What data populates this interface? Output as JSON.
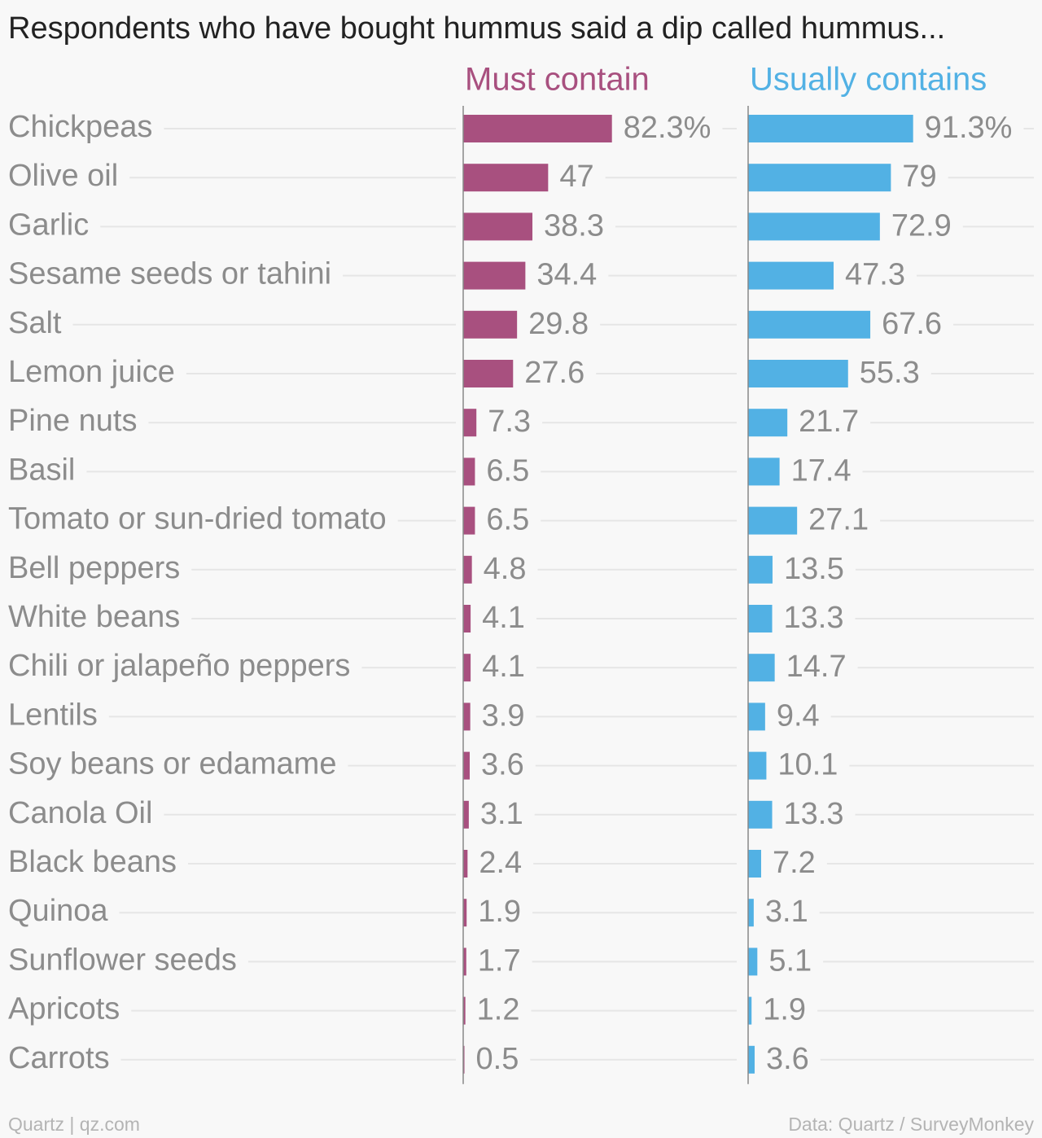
{
  "title": "Respondents who have bought hummus said a dip called hummus...",
  "footer": {
    "credit": "Quartz | qz.com",
    "source": "Data: Quartz / SurveyMonkey"
  },
  "colors": {
    "must_contain": "#a8507f",
    "usually_contains": "#52b1e4",
    "category_label": "#8c8c8c",
    "value_label": "#8c8c8c",
    "axis": "#888888",
    "gridline": "#e6e6e6"
  },
  "chart_data": {
    "type": "bar",
    "orientation": "horizontal",
    "grid": true,
    "categories": [
      "Chickpeas",
      "Olive oil",
      "Garlic",
      "Sesame seeds or tahini",
      "Salt",
      "Lemon juice",
      "Pine nuts",
      "Basil",
      "Tomato or sun-dried tomato",
      "Bell peppers",
      "White beans",
      "Chili or jalapeño peppers",
      "Lentils",
      "Soy beans or edamame",
      "Canola Oil",
      "Black beans",
      "Quinoa",
      "Sunflower seeds",
      "Apricots",
      "Carrots"
    ],
    "series": [
      {
        "name": "Must contain",
        "values": [
          82.3,
          47,
          38.3,
          34.4,
          29.8,
          27.6,
          7.3,
          6.5,
          6.5,
          4.8,
          4.1,
          4.1,
          3.9,
          3.6,
          3.1,
          2.4,
          1.9,
          1.7,
          1.2,
          0.5
        ],
        "labels": [
          "82.3%",
          "47",
          "38.3",
          "34.4",
          "29.8",
          "27.6",
          "7.3",
          "6.5",
          "6.5",
          "4.8",
          "4.1",
          "4.1",
          "3.9",
          "3.6",
          "3.1",
          "2.4",
          "1.9",
          "1.7",
          "1.2",
          "0.5"
        ]
      },
      {
        "name": "Usually contains",
        "values": [
          91.3,
          79,
          72.9,
          47.3,
          67.6,
          55.3,
          21.7,
          17.4,
          27.1,
          13.5,
          13.3,
          14.7,
          9.4,
          10.1,
          13.3,
          7.2,
          3.1,
          5.1,
          1.9,
          3.6
        ],
        "labels": [
          "91.3%",
          "79",
          "72.9",
          "47.3",
          "67.6",
          "55.3",
          "21.7",
          "17.4",
          "27.1",
          "13.5",
          "13.3",
          "14.7",
          "9.4",
          "10.1",
          "13.3",
          "7.2",
          "3.1",
          "5.1",
          "1.9",
          "3.6"
        ]
      }
    ],
    "xlim": [
      0,
      100
    ]
  }
}
